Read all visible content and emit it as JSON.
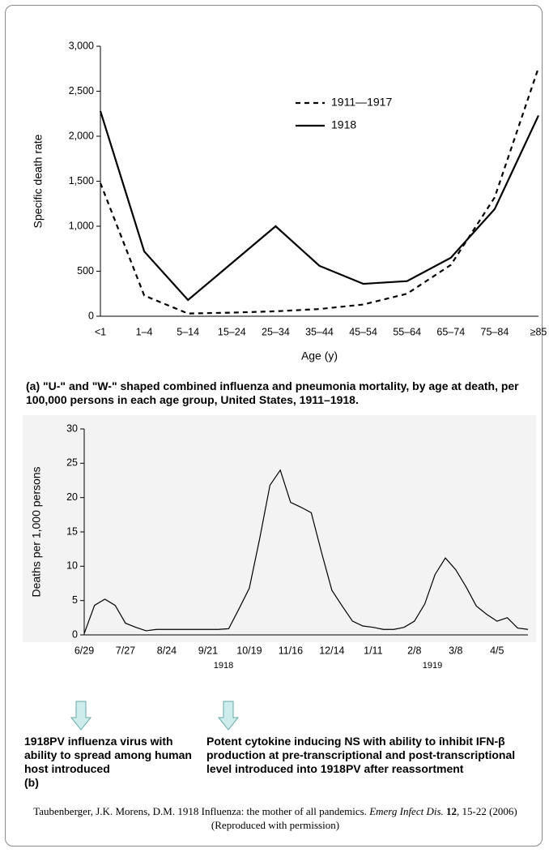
{
  "chart_data": [
    {
      "type": "line",
      "ylabel": "Specific death rate",
      "xlabel": "Age (y)",
      "categories": [
        "<1",
        "1–4",
        "5–14",
        "15–24",
        "25–34",
        "35–44",
        "45–54",
        "55–64",
        "65–74",
        "75–84",
        "≥85"
      ],
      "series": [
        {
          "name": "1911—1917",
          "color": "#000000",
          "line_style": "dashed",
          "values": [
            1480,
            230,
            30,
            40,
            55,
            80,
            130,
            250,
            570,
            1320,
            2760
          ]
        },
        {
          "name": "1918",
          "color": "#000000",
          "line_style": "solid",
          "values": [
            2280,
            720,
            180,
            590,
            1000,
            560,
            360,
            390,
            650,
            1190,
            2230
          ]
        }
      ],
      "ylim": [
        0,
        3000
      ],
      "yticks": [
        0,
        500,
        {
          "value": 1000,
          "label": "1,000"
        },
        {
          "value": 1500,
          "label": "1,500"
        },
        {
          "value": 2000,
          "label": "2,000"
        },
        {
          "value": 2500,
          "label": "2,500"
        },
        {
          "value": 3000,
          "label": "3,000"
        }
      ],
      "legend": "upper right"
    },
    {
      "type": "line",
      "ylabel": "Deaths per 1,000 persons",
      "categories": [
        "6/29",
        null,
        null,
        null,
        "7/27",
        null,
        null,
        null,
        "8/24",
        null,
        null,
        null,
        "9/21",
        null,
        null,
        null,
        "10/19",
        null,
        null,
        null,
        "11/16",
        null,
        null,
        null,
        "12/14",
        null,
        null,
        null,
        "1/11",
        null,
        null,
        null,
        "2/8",
        null,
        null,
        null,
        "3/8",
        null,
        null,
        null,
        "4/5",
        null,
        null,
        null
      ],
      "values": [
        0.2,
        4.3,
        5.2,
        4.3,
        1.7,
        1.1,
        0.6,
        0.8,
        0.8,
        0.8,
        0.8,
        0.8,
        0.8,
        0.8,
        0.9,
        3.8,
        6.8,
        14,
        21.8,
        24,
        19.3,
        18.6,
        17.8,
        12,
        6.5,
        4.2,
        2.0,
        1.3,
        1.1,
        0.8,
        0.8,
        1.1,
        2.0,
        4.5,
        8.8,
        11.2,
        9.5,
        7,
        4.2,
        3,
        2,
        2.5,
        1,
        0.8
      ],
      "color": "#000000",
      "ylim": [
        0,
        30
      ],
      "yticks": [
        0,
        5,
        10,
        15,
        20,
        25,
        30
      ],
      "year_labels": [
        "1918",
        "1919"
      ],
      "background": "#f3f3f3"
    }
  ],
  "caption_a": "(a) \"U-\" and \"W-\" shaped combined influenza and pneumonia mortality, by age at death, per 100,000 persons in each age group, United States, 1911–1918.",
  "annotations": [
    "1918PV influenza virus with ability to spread among human host introduced",
    "Potent cytokine inducing NS with ability to inhibit IFN-β production at pre-transcriptional and post-transcriptional level introduced into 1918PV after reassortment"
  ],
  "label_b": "(b)",
  "citation": {
    "authors": "Taubenberger, J.K. Morens, D.M. 1918 Influenza: the mother of all pandemics.",
    "journal": "Emerg Infect Dis.",
    "volume": "12",
    "rest": ", 15-22 (2006) (Reproduced with permission)"
  }
}
